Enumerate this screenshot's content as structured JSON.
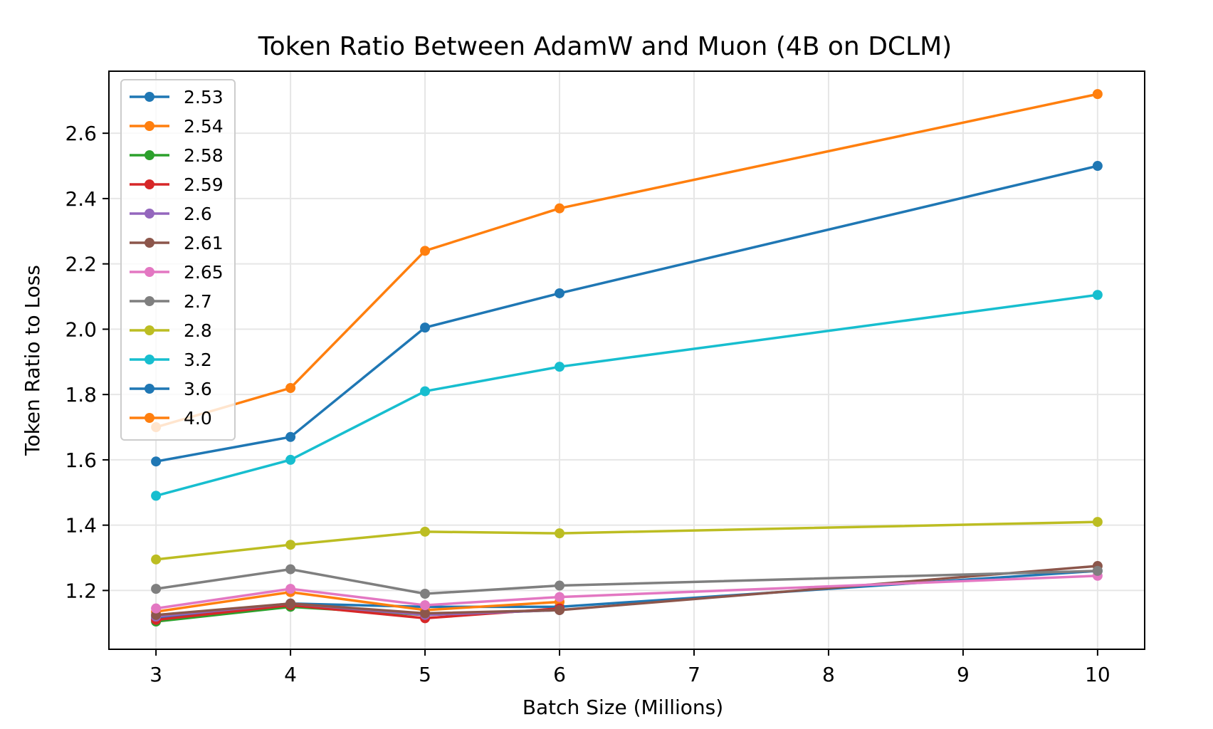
{
  "chart_data": {
    "type": "line",
    "title": "Token Ratio Between AdamW and Muon (4B on DCLM)",
    "xlabel": "Batch Size (Millions)",
    "ylabel": "Token Ratio to Loss",
    "xlim": [
      2.65,
      10.35
    ],
    "ylim": [
      1.02,
      2.79
    ],
    "xticks": [
      3,
      4,
      5,
      6,
      7,
      8,
      9,
      10
    ],
    "yticks": [
      1.2,
      1.4,
      1.6,
      1.8,
      2.0,
      2.2,
      2.4,
      2.6
    ],
    "xtick_labels": [
      "3",
      "4",
      "5",
      "6",
      "7",
      "8",
      "9",
      "10"
    ],
    "ytick_labels": [
      "1.2",
      "1.4",
      "1.6",
      "1.8",
      "2.0",
      "2.2",
      "2.4",
      "2.6"
    ],
    "grid": true,
    "legend_position": "top-left",
    "series": [
      {
        "name": "2.53",
        "color": "#1f77b4",
        "x": [
          3,
          4,
          5,
          6,
          10
        ],
        "values": [
          1.115,
          1.16,
          1.15,
          1.15,
          1.26
        ]
      },
      {
        "name": "2.54",
        "color": "#ff7f0e",
        "x": [
          3,
          4,
          5,
          6
        ],
        "values": [
          1.135,
          1.195,
          1.14,
          1.165
        ]
      },
      {
        "name": "2.58",
        "color": "#2ca02c",
        "x": [
          3,
          4,
          5,
          6
        ],
        "values": [
          1.105,
          1.15,
          1.125,
          1.14
        ]
      },
      {
        "name": "2.59",
        "color": "#d62728",
        "x": [
          3,
          4,
          5,
          6
        ],
        "values": [
          1.11,
          1.155,
          1.115,
          1.145
        ]
      },
      {
        "name": "2.6",
        "color": "#9467bd",
        "x": [
          3,
          4,
          5,
          6
        ],
        "values": [
          1.12,
          1.16,
          1.125,
          1.14
        ]
      },
      {
        "name": "2.61",
        "color": "#8c564b",
        "x": [
          3,
          4,
          5,
          6,
          10
        ],
        "values": [
          1.125,
          1.16,
          1.13,
          1.14,
          1.275
        ]
      },
      {
        "name": "2.65",
        "color": "#e377c2",
        "x": [
          3,
          4,
          5,
          6,
          10
        ],
        "values": [
          1.145,
          1.205,
          1.155,
          1.18,
          1.245
        ]
      },
      {
        "name": "2.7",
        "color": "#7f7f7f",
        "x": [
          3,
          4,
          5,
          6,
          10
        ],
        "values": [
          1.205,
          1.265,
          1.19,
          1.215,
          1.26
        ]
      },
      {
        "name": "2.8",
        "color": "#bcbd22",
        "x": [
          3,
          4,
          5,
          6,
          10
        ],
        "values": [
          1.295,
          1.34,
          1.38,
          1.375,
          1.41
        ]
      },
      {
        "name": "3.2",
        "color": "#17becf",
        "x": [
          3,
          4,
          5,
          6,
          10
        ],
        "values": [
          1.49,
          1.6,
          1.81,
          1.885,
          2.105
        ]
      },
      {
        "name": "3.6",
        "color": "#1f77b4",
        "x": [
          3,
          4,
          5,
          6,
          10
        ],
        "values": [
          1.595,
          1.67,
          2.005,
          2.11,
          2.5
        ]
      },
      {
        "name": "4.0",
        "color": "#ff7f0e",
        "x": [
          3,
          4,
          5,
          6,
          10
        ],
        "values": [
          1.7,
          1.82,
          2.24,
          2.37,
          2.72
        ]
      }
    ]
  }
}
